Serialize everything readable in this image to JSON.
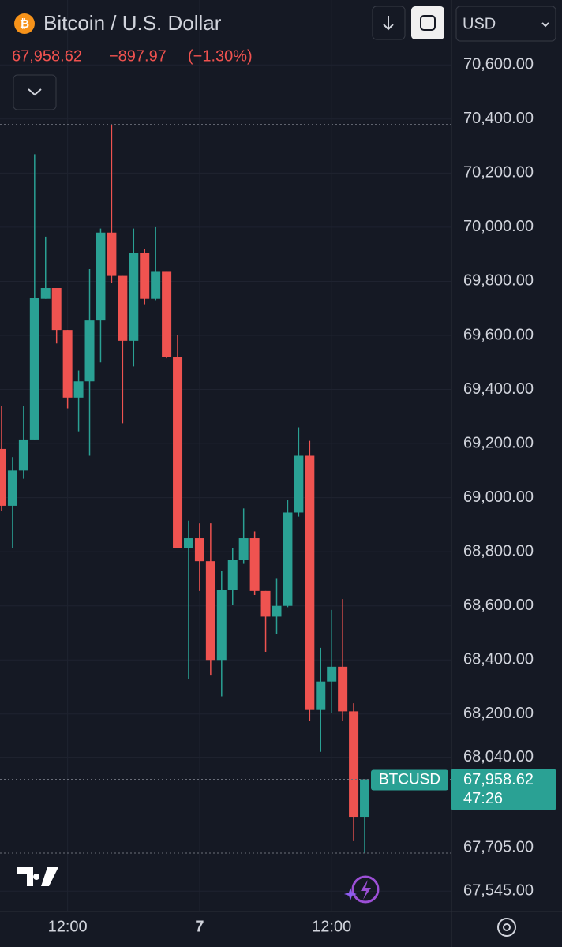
{
  "header": {
    "title": "Bitcoin / U.S. Dollar",
    "last": "67,958.62",
    "change": "−897.97",
    "change_pct": "(−1.30%)",
    "currency": "USD",
    "symbol": "BTCUSD",
    "countdown": "47:26"
  },
  "chart_data": {
    "type": "candlestick",
    "categories": [
      null,
      null,
      null,
      null,
      null,
      null,
      "12:00",
      null,
      null,
      null,
      null,
      null,
      null,
      null,
      null,
      null,
      null,
      null,
      "7",
      null,
      null,
      null,
      null,
      null,
      null,
      null,
      null,
      null,
      null,
      null,
      "12:00",
      null,
      null,
      null
    ],
    "up_color": "#2aa194",
    "down_color": "#ef5350",
    "open": [
      69180,
      68970,
      69100,
      69215,
      69735,
      69775,
      69620,
      69370,
      69430,
      69655,
      69980,
      69820,
      69580,
      69905,
      69735,
      69835,
      69520,
      68815,
      68850,
      68765,
      68400,
      68660,
      68770,
      68850,
      68655,
      68560,
      68600,
      68945,
      69155,
      68215,
      68320,
      68375,
      68210,
      67820
    ],
    "high": [
      69340,
      69150,
      69340,
      70270,
      69965,
      69775,
      69620,
      69470,
      69845,
      69995,
      70380,
      69820,
      69995,
      69920,
      70000,
      69835,
      69600,
      68915,
      68905,
      68905,
      68730,
      68815,
      68960,
      68875,
      68655,
      68700,
      68990,
      69260,
      69210,
      68445,
      68585,
      68625,
      68240,
      67960
    ],
    "low": [
      68950,
      68815,
      69070,
      69215,
      69735,
      69570,
      69330,
      69245,
      69155,
      69500,
      69795,
      69275,
      69485,
      69715,
      69730,
      69515,
      68815,
      68330,
      68655,
      68345,
      68265,
      68605,
      68755,
      68640,
      68430,
      68495,
      68595,
      68930,
      68175,
      68060,
      68205,
      68175,
      67730,
      67686
    ],
    "close": [
      68970,
      69100,
      69215,
      69740,
      69775,
      69620,
      69370,
      69430,
      69655,
      69980,
      69820,
      69580,
      69905,
      69735,
      69835,
      69520,
      68815,
      68850,
      68765,
      68400,
      68660,
      68770,
      68850,
      68655,
      68560,
      68600,
      68945,
      69155,
      68215,
      68320,
      68375,
      68210,
      67820,
      67958.62
    ],
    "ylim": [
      67470,
      70840
    ],
    "yticks": [
      {
        "value": 70600,
        "label": "70,600.00"
      },
      {
        "value": 70400,
        "label": "70,400.00"
      },
      {
        "value": 70200,
        "label": "70,200.00"
      },
      {
        "value": 70000,
        "label": "70,000.00"
      },
      {
        "value": 69800,
        "label": "69,800.00"
      },
      {
        "value": 69600,
        "label": "69,600.00"
      },
      {
        "value": 69400,
        "label": "69,400.00"
      },
      {
        "value": 69200,
        "label": "69,200.00"
      },
      {
        "value": 69000,
        "label": "69,000.00"
      },
      {
        "value": 68800,
        "label": "68,800.00"
      },
      {
        "value": 68600,
        "label": "68,600.00"
      },
      {
        "value": 68400,
        "label": "68,400.00"
      },
      {
        "value": 68200,
        "label": "68,200.00"
      },
      {
        "value": 68040,
        "label": "68,040.00"
      },
      {
        "value": 67705,
        "label": "67,705.00"
      },
      {
        "value": 67545,
        "label": "67,545.00"
      }
    ],
    "grid": true
  }
}
